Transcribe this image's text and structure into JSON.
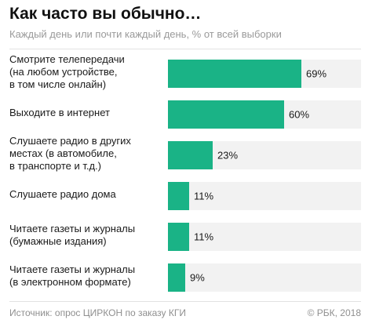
{
  "colors": {
    "bar": "#1ab386",
    "track": "#f2f2f2"
  },
  "footer": {
    "source": "Источник: опрос ЦИРКОН по заказу КГИ",
    "credit": "© РБК, 2018"
  },
  "chart_data": {
    "type": "bar",
    "orientation": "horizontal",
    "title": "Как часто вы обычно…",
    "subtitle": "Каждый день или почти каждый день, % от всей выборки",
    "categories": [
      "Смотрите телепередачи\n(на любом устройстве,\nв том числе онлайн)",
      "Выходите в интернет",
      "Слушаете радио в других\nместах (в автомобиле,\nв транспорте и т.д.)",
      "Слушаете радио дома",
      "Читаете газеты и журналы\n(бумажные издания)",
      "Читаете газеты и журналы\n(в электронном формате)"
    ],
    "values": [
      69,
      60,
      23,
      11,
      11,
      9
    ],
    "value_labels": [
      "69%",
      "60%",
      "23%",
      "11%",
      "11%",
      "9%"
    ],
    "xlim": [
      0,
      100
    ],
    "grid": false
  }
}
